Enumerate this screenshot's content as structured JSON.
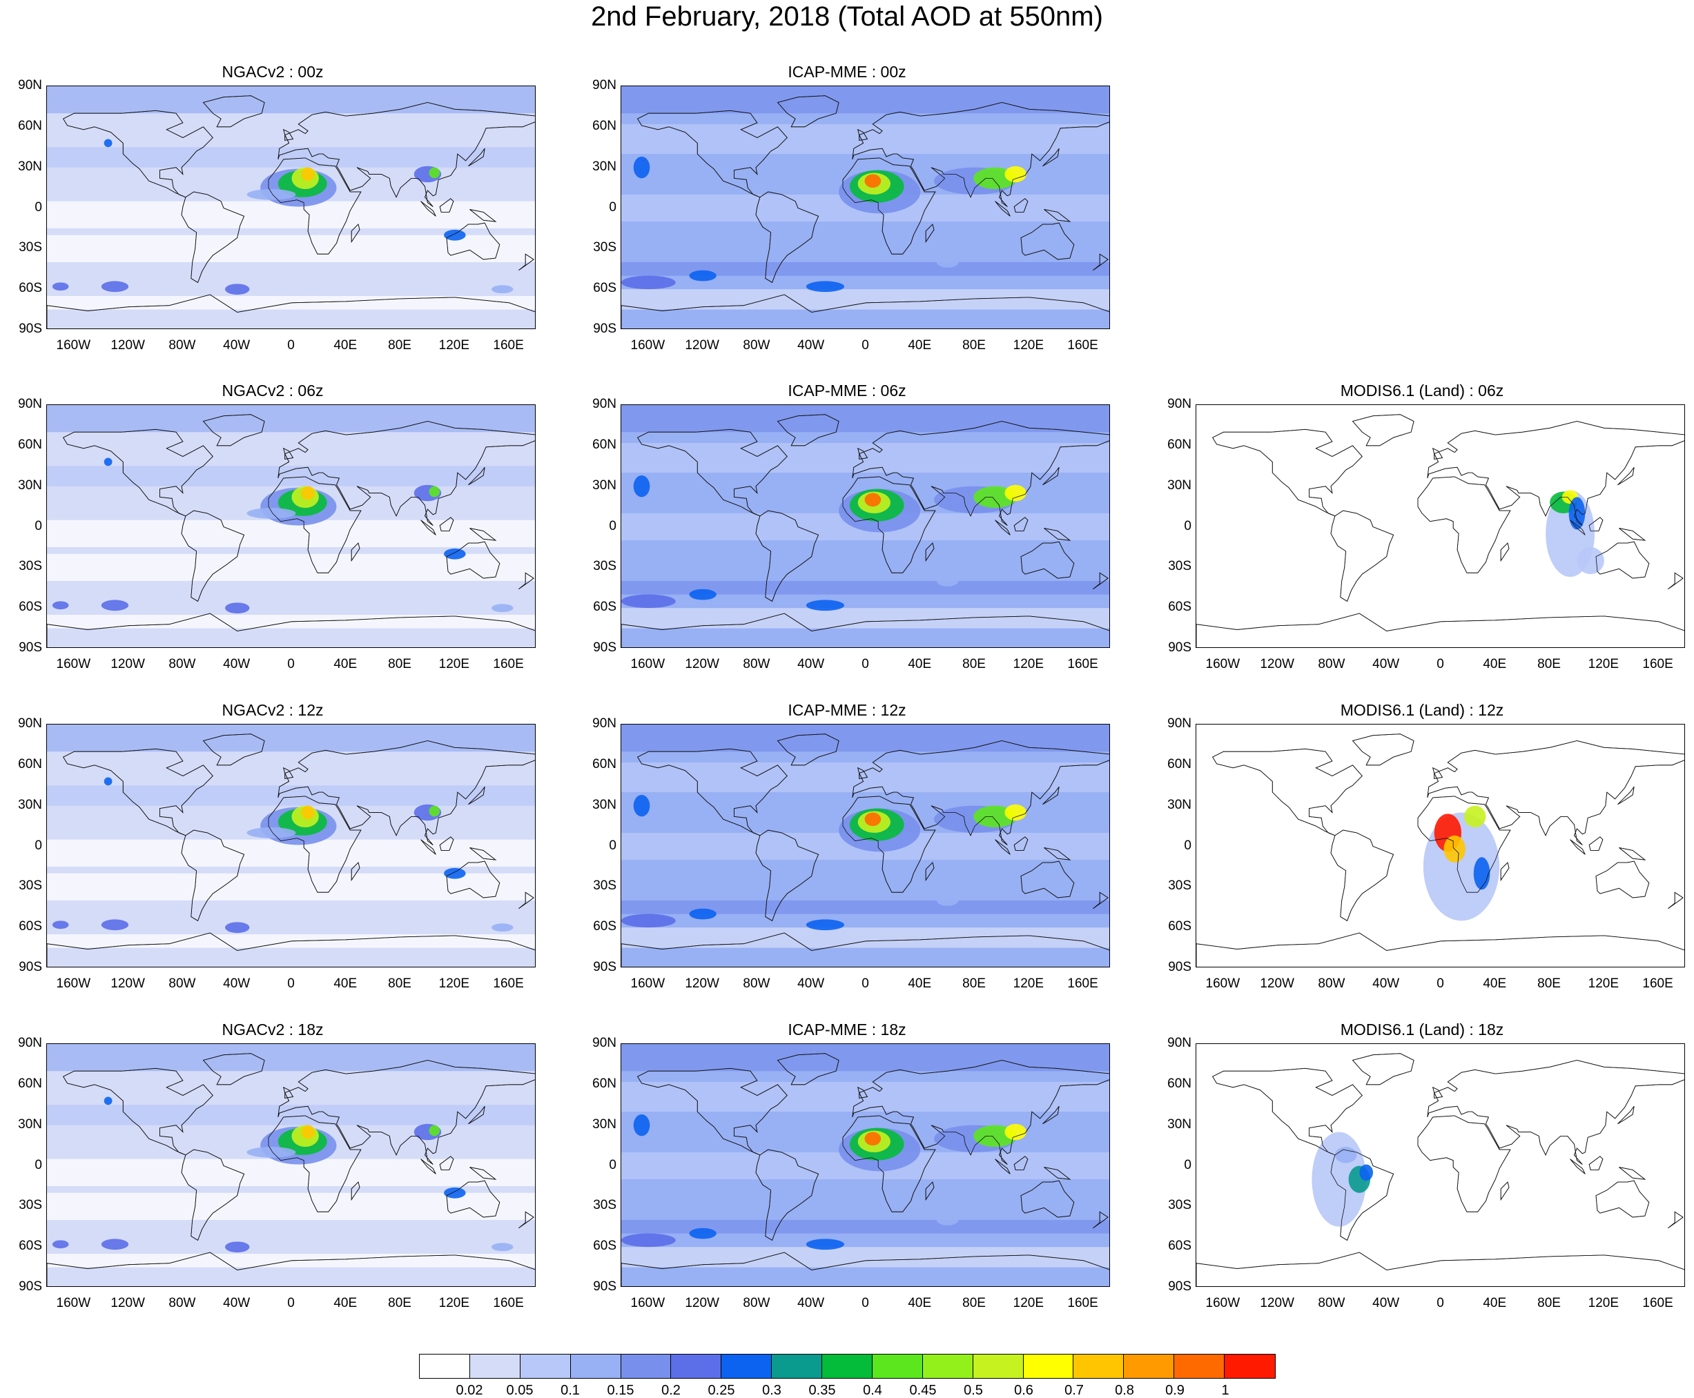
{
  "title": "2nd February, 2018 (Total AOD at 550nm)",
  "lat_labels": [
    "90N",
    "60N",
    "30N",
    "0",
    "30S",
    "60S",
    "90S"
  ],
  "lon_labels": [
    "160W",
    "120W",
    "80W",
    "40W",
    "0",
    "40E",
    "80E",
    "120E",
    "160E"
  ],
  "panels": [
    {
      "id": "ngac-00z",
      "title": "NGACv2 : 00z",
      "col": 0,
      "row": 0,
      "type": "model-ngac"
    },
    {
      "id": "icap-00z",
      "title": "ICAP-MME : 00z",
      "col": 1,
      "row": 0,
      "type": "model-icap"
    },
    {
      "id": "ngac-06z",
      "title": "NGACv2 : 06z",
      "col": 0,
      "row": 1,
      "type": "model-ngac"
    },
    {
      "id": "icap-06z",
      "title": "ICAP-MME : 06z",
      "col": 1,
      "row": 1,
      "type": "model-icap"
    },
    {
      "id": "modis-06z",
      "title": "MODIS6.1 (Land) : 06z",
      "col": 2,
      "row": 1,
      "type": "modis-asia"
    },
    {
      "id": "ngac-12z",
      "title": "NGACv2 : 12z",
      "col": 0,
      "row": 2,
      "type": "model-ngac"
    },
    {
      "id": "icap-12z",
      "title": "ICAP-MME : 12z",
      "col": 1,
      "row": 2,
      "type": "model-icap"
    },
    {
      "id": "modis-12z",
      "title": "MODIS6.1 (Land) : 12z",
      "col": 2,
      "row": 2,
      "type": "modis-africa"
    },
    {
      "id": "ngac-18z",
      "title": "NGACv2 : 18z",
      "col": 0,
      "row": 3,
      "type": "model-ngac"
    },
    {
      "id": "icap-18z",
      "title": "ICAP-MME : 18z",
      "col": 1,
      "row": 3,
      "type": "model-icap"
    },
    {
      "id": "modis-18z",
      "title": "MODIS6.1 (Land) : 18z",
      "col": 2,
      "row": 3,
      "type": "modis-samerica"
    }
  ],
  "colorbar": {
    "colors": [
      "#ffffff",
      "#d5dcf8",
      "#b8c8f8",
      "#98b0f4",
      "#7890ec",
      "#5c6ee8",
      "#0b63f0",
      "#0a9a8e",
      "#05bb3a",
      "#5ce61d",
      "#94f01a",
      "#c6f21f",
      "#ffff00",
      "#ffc600",
      "#ff9a00",
      "#ff6a00",
      "#ff1a00"
    ],
    "labels": [
      "0.02",
      "0.05",
      "0.1",
      "0.15",
      "0.2",
      "0.25",
      "0.3",
      "0.35",
      "0.4",
      "0.45",
      "0.5",
      "0.6",
      "0.7",
      "0.8",
      "0.9",
      "1"
    ]
  }
}
